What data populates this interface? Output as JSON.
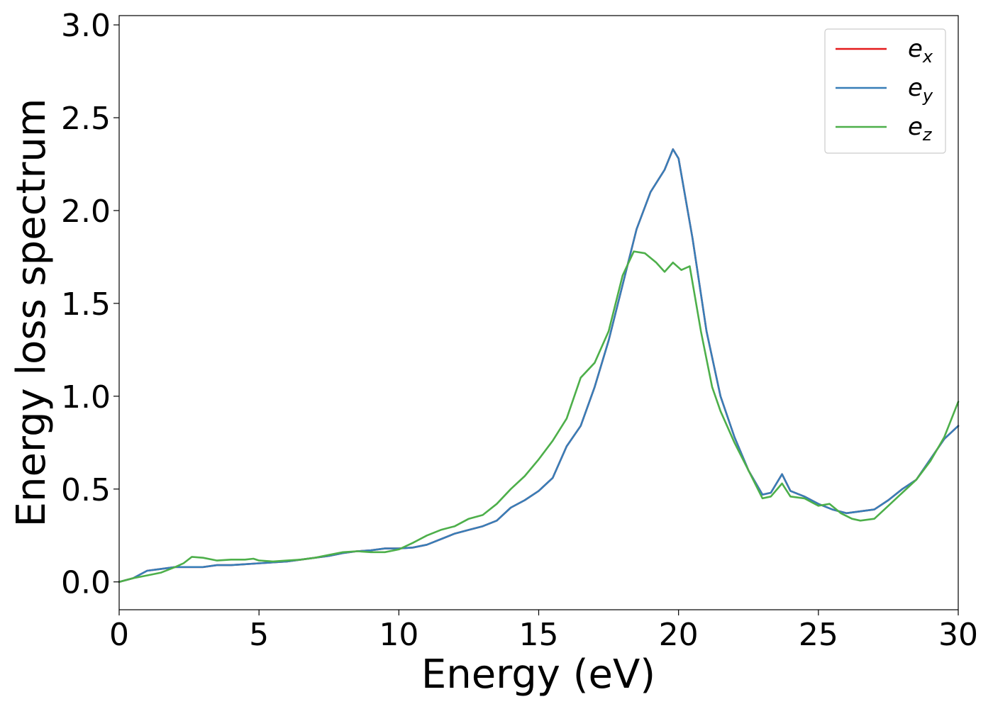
{
  "chart_data": {
    "type": "line",
    "title": "",
    "xlabel": "Energy (eV)",
    "ylabel": "Energy loss spectrum",
    "xlim": [
      0,
      30
    ],
    "ylim": [
      -0.15,
      3.05
    ],
    "xticks": [
      0,
      5,
      10,
      15,
      20,
      25,
      30
    ],
    "xtick_labels": [
      "0",
      "5",
      "10",
      "15",
      "20",
      "25",
      "30"
    ],
    "yticks": [
      0.0,
      0.5,
      1.0,
      1.5,
      2.0,
      2.5,
      3.0
    ],
    "ytick_labels": [
      "0.0",
      "0.5",
      "1.0",
      "1.5",
      "2.0",
      "2.5",
      "3.0"
    ],
    "grid": false,
    "legend_position": "top-right",
    "series": [
      {
        "name": "e_x",
        "legend_base": "e",
        "legend_sub": "x",
        "color": "#e41a1c",
        "x": [
          0,
          0.5,
          1.0,
          1.5,
          2.0,
          2.5,
          3.0,
          3.5,
          4.0,
          4.5,
          5.0,
          5.5,
          6.0,
          6.5,
          7.0,
          7.5,
          8.0,
          8.5,
          9.0,
          9.5,
          10.0,
          10.5,
          11.0,
          11.5,
          12.0,
          12.5,
          13.0,
          13.5,
          14.0,
          14.5,
          15.0,
          15.5,
          16.0,
          16.5,
          17.0,
          17.5,
          18.0,
          18.5,
          19.0,
          19.5,
          19.8,
          20.0,
          20.5,
          21.0,
          21.5,
          22.0,
          22.5,
          23.0,
          23.3,
          23.7,
          24.0,
          24.5,
          25.0,
          25.5,
          26.0,
          26.5,
          27.0,
          27.5,
          28.0,
          28.5,
          29.0,
          29.5,
          30.0
        ],
        "values": [
          0.0,
          0.02,
          0.06,
          0.07,
          0.08,
          0.08,
          0.08,
          0.09,
          0.09,
          0.095,
          0.1,
          0.105,
          0.11,
          0.12,
          0.13,
          0.14,
          0.155,
          0.165,
          0.17,
          0.18,
          0.18,
          0.185,
          0.2,
          0.23,
          0.26,
          0.28,
          0.3,
          0.33,
          0.4,
          0.44,
          0.49,
          0.56,
          0.73,
          0.84,
          1.05,
          1.3,
          1.6,
          1.9,
          2.1,
          2.22,
          2.33,
          2.28,
          1.85,
          1.35,
          1.0,
          0.78,
          0.6,
          0.47,
          0.48,
          0.58,
          0.49,
          0.46,
          0.42,
          0.39,
          0.37,
          0.38,
          0.39,
          0.44,
          0.5,
          0.55,
          0.66,
          0.77,
          0.84
        ]
      },
      {
        "name": "e_y",
        "legend_base": "e",
        "legend_sub": "y",
        "color": "#377eb8",
        "x": [
          0,
          0.5,
          1.0,
          1.5,
          2.0,
          2.5,
          3.0,
          3.5,
          4.0,
          4.5,
          5.0,
          5.5,
          6.0,
          6.5,
          7.0,
          7.5,
          8.0,
          8.5,
          9.0,
          9.5,
          10.0,
          10.5,
          11.0,
          11.5,
          12.0,
          12.5,
          13.0,
          13.5,
          14.0,
          14.5,
          15.0,
          15.5,
          16.0,
          16.5,
          17.0,
          17.5,
          18.0,
          18.5,
          19.0,
          19.5,
          19.8,
          20.0,
          20.5,
          21.0,
          21.5,
          22.0,
          22.5,
          23.0,
          23.3,
          23.7,
          24.0,
          24.5,
          25.0,
          25.5,
          26.0,
          26.5,
          27.0,
          27.5,
          28.0,
          28.5,
          29.0,
          29.5,
          30.0
        ],
        "values": [
          0.0,
          0.02,
          0.06,
          0.07,
          0.08,
          0.08,
          0.08,
          0.09,
          0.09,
          0.095,
          0.1,
          0.105,
          0.11,
          0.12,
          0.13,
          0.14,
          0.155,
          0.165,
          0.17,
          0.18,
          0.18,
          0.185,
          0.2,
          0.23,
          0.26,
          0.28,
          0.3,
          0.33,
          0.4,
          0.44,
          0.49,
          0.56,
          0.73,
          0.84,
          1.05,
          1.3,
          1.6,
          1.9,
          2.1,
          2.22,
          2.33,
          2.28,
          1.85,
          1.35,
          1.0,
          0.78,
          0.6,
          0.47,
          0.48,
          0.58,
          0.49,
          0.46,
          0.42,
          0.39,
          0.37,
          0.38,
          0.39,
          0.44,
          0.5,
          0.55,
          0.66,
          0.77,
          0.84
        ]
      },
      {
        "name": "e_z",
        "legend_base": "e",
        "legend_sub": "z",
        "color": "#4daf4a",
        "x": [
          0,
          0.5,
          1.0,
          1.5,
          2.0,
          2.3,
          2.6,
          3.0,
          3.5,
          4.0,
          4.5,
          4.8,
          5.0,
          5.5,
          6.0,
          6.5,
          7.0,
          7.5,
          8.0,
          8.5,
          9.0,
          9.5,
          10.0,
          10.5,
          11.0,
          11.5,
          12.0,
          12.5,
          13.0,
          13.5,
          14.0,
          14.5,
          15.0,
          15.5,
          16.0,
          16.5,
          17.0,
          17.5,
          18.0,
          18.4,
          18.8,
          19.2,
          19.5,
          19.8,
          20.1,
          20.4,
          20.8,
          21.2,
          21.5,
          22.0,
          22.5,
          23.0,
          23.3,
          23.7,
          24.0,
          24.5,
          25.0,
          25.4,
          25.8,
          26.2,
          26.5,
          27.0,
          27.5,
          28.0,
          28.5,
          29.0,
          29.5,
          30.0
        ],
        "values": [
          0.0,
          0.02,
          0.035,
          0.05,
          0.08,
          0.1,
          0.135,
          0.13,
          0.115,
          0.12,
          0.12,
          0.125,
          0.115,
          0.11,
          0.115,
          0.12,
          0.13,
          0.145,
          0.16,
          0.165,
          0.16,
          0.16,
          0.175,
          0.21,
          0.25,
          0.28,
          0.3,
          0.34,
          0.36,
          0.42,
          0.5,
          0.57,
          0.66,
          0.76,
          0.88,
          1.1,
          1.18,
          1.35,
          1.65,
          1.78,
          1.77,
          1.72,
          1.67,
          1.72,
          1.68,
          1.7,
          1.35,
          1.05,
          0.92,
          0.75,
          0.6,
          0.45,
          0.46,
          0.53,
          0.46,
          0.45,
          0.41,
          0.42,
          0.37,
          0.34,
          0.33,
          0.34,
          0.41,
          0.48,
          0.55,
          0.65,
          0.78,
          0.97
        ]
      }
    ]
  }
}
